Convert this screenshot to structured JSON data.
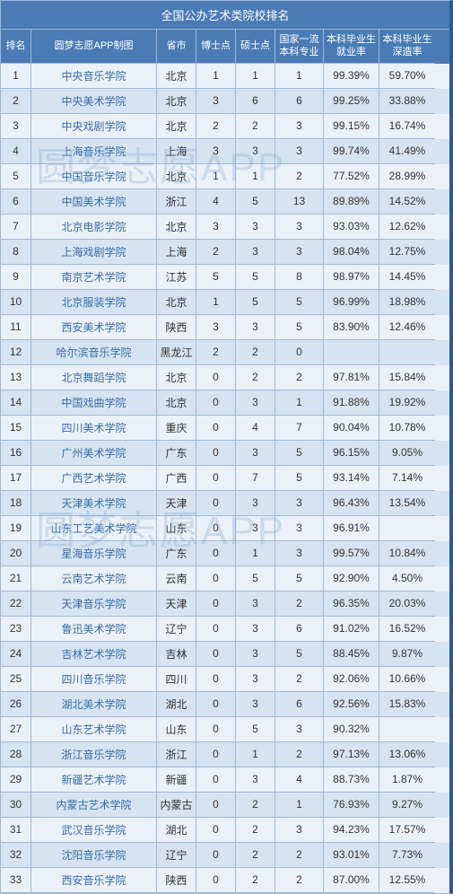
{
  "title": "全国公办艺术类院校排名",
  "watermark": "圆梦志愿APP",
  "columns": [
    "排名",
    "圆梦志愿APP制图",
    "省市",
    "博士点",
    "硕士点",
    "国家一流本科专业",
    "本科毕业生就业率",
    "本科毕业生深造率"
  ],
  "rows": [
    {
      "rank": "1",
      "school": "中央音乐学院",
      "prov": "北京",
      "phd": "1",
      "ms": "1",
      "fc": "1",
      "emp": "99.39%",
      "fur": "59.70%"
    },
    {
      "rank": "2",
      "school": "中央美术学院",
      "prov": "北京",
      "phd": "3",
      "ms": "6",
      "fc": "6",
      "emp": "99.25%",
      "fur": "33.88%"
    },
    {
      "rank": "3",
      "school": "中央戏剧学院",
      "prov": "北京",
      "phd": "2",
      "ms": "2",
      "fc": "3",
      "emp": "99.15%",
      "fur": "16.74%"
    },
    {
      "rank": "4",
      "school": "上海音乐学院",
      "prov": "上海",
      "phd": "3",
      "ms": "3",
      "fc": "3",
      "emp": "99.74%",
      "fur": "41.49%"
    },
    {
      "rank": "5",
      "school": "中国音乐学院",
      "prov": "北京",
      "phd": "1",
      "ms": "1",
      "fc": "2",
      "emp": "77.52%",
      "fur": "28.99%"
    },
    {
      "rank": "6",
      "school": "中国美术学院",
      "prov": "浙江",
      "phd": "4",
      "ms": "5",
      "fc": "13",
      "emp": "89.89%",
      "fur": "14.52%"
    },
    {
      "rank": "7",
      "school": "北京电影学院",
      "prov": "北京",
      "phd": "3",
      "ms": "3",
      "fc": "3",
      "emp": "93.03%",
      "fur": "12.62%"
    },
    {
      "rank": "8",
      "school": "上海戏剧学院",
      "prov": "上海",
      "phd": "2",
      "ms": "3",
      "fc": "3",
      "emp": "98.04%",
      "fur": "12.75%"
    },
    {
      "rank": "9",
      "school": "南京艺术学院",
      "prov": "江苏",
      "phd": "5",
      "ms": "5",
      "fc": "8",
      "emp": "98.97%",
      "fur": "14.45%"
    },
    {
      "rank": "10",
      "school": "北京服装学院",
      "prov": "北京",
      "phd": "1",
      "ms": "5",
      "fc": "5",
      "emp": "96.99%",
      "fur": "18.98%"
    },
    {
      "rank": "11",
      "school": "西安美术学院",
      "prov": "陕西",
      "phd": "3",
      "ms": "3",
      "fc": "5",
      "emp": "83.90%",
      "fur": "12.46%"
    },
    {
      "rank": "12",
      "school": "哈尔滨音乐学院",
      "prov": "黑龙江",
      "phd": "2",
      "ms": "2",
      "fc": "0",
      "emp": "",
      "fur": ""
    },
    {
      "rank": "13",
      "school": "北京舞蹈学院",
      "prov": "北京",
      "phd": "0",
      "ms": "2",
      "fc": "2",
      "emp": "97.81%",
      "fur": "15.84%"
    },
    {
      "rank": "14",
      "school": "中国戏曲学院",
      "prov": "北京",
      "phd": "0",
      "ms": "3",
      "fc": "1",
      "emp": "91.88%",
      "fur": "19.92%"
    },
    {
      "rank": "15",
      "school": "四川美术学院",
      "prov": "重庆",
      "phd": "0",
      "ms": "4",
      "fc": "7",
      "emp": "90.04%",
      "fur": "10.78%"
    },
    {
      "rank": "16",
      "school": "广州美术学院",
      "prov": "广东",
      "phd": "0",
      "ms": "3",
      "fc": "5",
      "emp": "96.15%",
      "fur": "9.05%"
    },
    {
      "rank": "17",
      "school": "广西艺术学院",
      "prov": "广西",
      "phd": "0",
      "ms": "7",
      "fc": "5",
      "emp": "93.14%",
      "fur": "7.14%"
    },
    {
      "rank": "18",
      "school": "天津美术学院",
      "prov": "天津",
      "phd": "0",
      "ms": "3",
      "fc": "3",
      "emp": "96.43%",
      "fur": "13.54%"
    },
    {
      "rank": "19",
      "school": "山东工艺美术学院",
      "prov": "山东",
      "phd": "0",
      "ms": "3",
      "fc": "3",
      "emp": "96.91%",
      "fur": ""
    },
    {
      "rank": "20",
      "school": "星海音乐学院",
      "prov": "广东",
      "phd": "0",
      "ms": "1",
      "fc": "3",
      "emp": "99.57%",
      "fur": "10.84%"
    },
    {
      "rank": "21",
      "school": "云南艺术学院",
      "prov": "云南",
      "phd": "0",
      "ms": "5",
      "fc": "5",
      "emp": "92.90%",
      "fur": "4.50%"
    },
    {
      "rank": "22",
      "school": "天津音乐学院",
      "prov": "天津",
      "phd": "0",
      "ms": "3",
      "fc": "2",
      "emp": "96.35%",
      "fur": "20.03%"
    },
    {
      "rank": "23",
      "school": "鲁迅美术学院",
      "prov": "辽宁",
      "phd": "0",
      "ms": "3",
      "fc": "6",
      "emp": "91.02%",
      "fur": "16.52%"
    },
    {
      "rank": "24",
      "school": "吉林艺术学院",
      "prov": "吉林",
      "phd": "0",
      "ms": "3",
      "fc": "5",
      "emp": "88.45%",
      "fur": "9.87%"
    },
    {
      "rank": "25",
      "school": "四川音乐学院",
      "prov": "四川",
      "phd": "0",
      "ms": "3",
      "fc": "2",
      "emp": "92.06%",
      "fur": "10.66%"
    },
    {
      "rank": "26",
      "school": "湖北美术学院",
      "prov": "湖北",
      "phd": "0",
      "ms": "3",
      "fc": "6",
      "emp": "92.56%",
      "fur": "15.83%"
    },
    {
      "rank": "27",
      "school": "山东艺术学院",
      "prov": "山东",
      "phd": "0",
      "ms": "5",
      "fc": "3",
      "emp": "90.32%",
      "fur": ""
    },
    {
      "rank": "28",
      "school": "浙江音乐学院",
      "prov": "浙江",
      "phd": "0",
      "ms": "1",
      "fc": "2",
      "emp": "97.13%",
      "fur": "13.06%"
    },
    {
      "rank": "29",
      "school": "新疆艺术学院",
      "prov": "新疆",
      "phd": "0",
      "ms": "3",
      "fc": "4",
      "emp": "88.73%",
      "fur": "1.87%"
    },
    {
      "rank": "30",
      "school": "内蒙古艺术学院",
      "prov": "内蒙古",
      "phd": "0",
      "ms": "2",
      "fc": "1",
      "emp": "76.93%",
      "fur": "9.27%"
    },
    {
      "rank": "31",
      "school": "武汉音乐学院",
      "prov": "湖北",
      "phd": "0",
      "ms": "2",
      "fc": "3",
      "emp": "94.23%",
      "fur": "17.57%"
    },
    {
      "rank": "32",
      "school": "沈阳音乐学院",
      "prov": "辽宁",
      "phd": "0",
      "ms": "2",
      "fc": "2",
      "emp": "93.01%",
      "fur": "7.73%"
    },
    {
      "rank": "33",
      "school": "西安音乐学院",
      "prov": "陕西",
      "phd": "0",
      "ms": "2",
      "fc": "2",
      "emp": "87.00%",
      "fur": "12.55%"
    }
  ]
}
